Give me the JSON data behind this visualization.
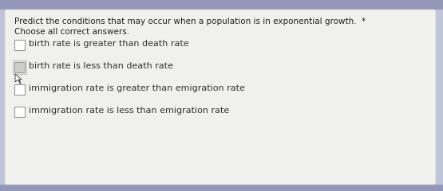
{
  "title_line1": "Predict the conditions that may occur when a population is in exponential growth.  *",
  "title_line2": "Choose all correct answers.",
  "options": [
    "birth rate is greater than death rate",
    "birth rate is less than death rate",
    "immigration rate is greater than emigration rate",
    "immigration rate is less than emigration rate"
  ],
  "checked": [
    false,
    true,
    false,
    false
  ],
  "bg_outer_top": "#b0b4cc",
  "bg_outer": "#c0c4d8",
  "bg_card": "#f0f0ee",
  "title_color": "#222222",
  "option_color": "#333333",
  "checkbox_border": "#999999",
  "checkbox_fill_normal": "#ffffff",
  "checkbox_fill_checked": "#cccccc",
  "title_fontsize": 7.5,
  "option_fontsize": 8.0
}
